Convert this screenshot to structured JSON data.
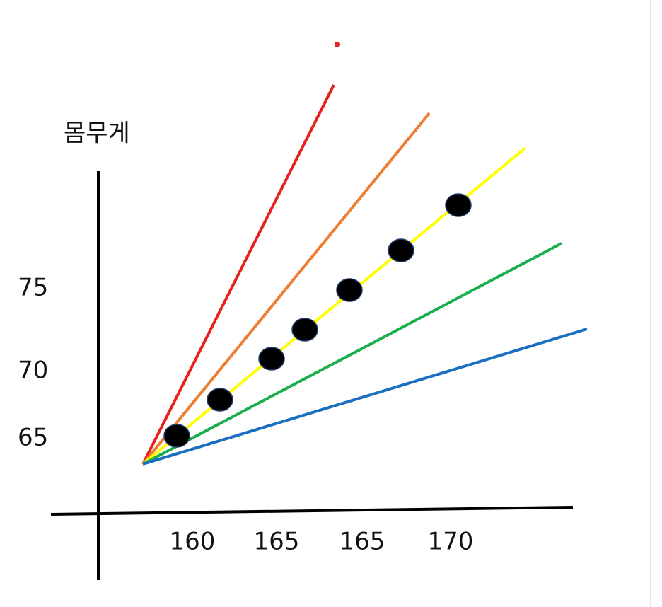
{
  "y_axis": {
    "label": "몸무게",
    "tick_labels": [
      "75",
      "70",
      "65"
    ]
  },
  "x_axis": {
    "tick_labels": [
      "160",
      "165",
      "165",
      "170"
    ]
  }
}
